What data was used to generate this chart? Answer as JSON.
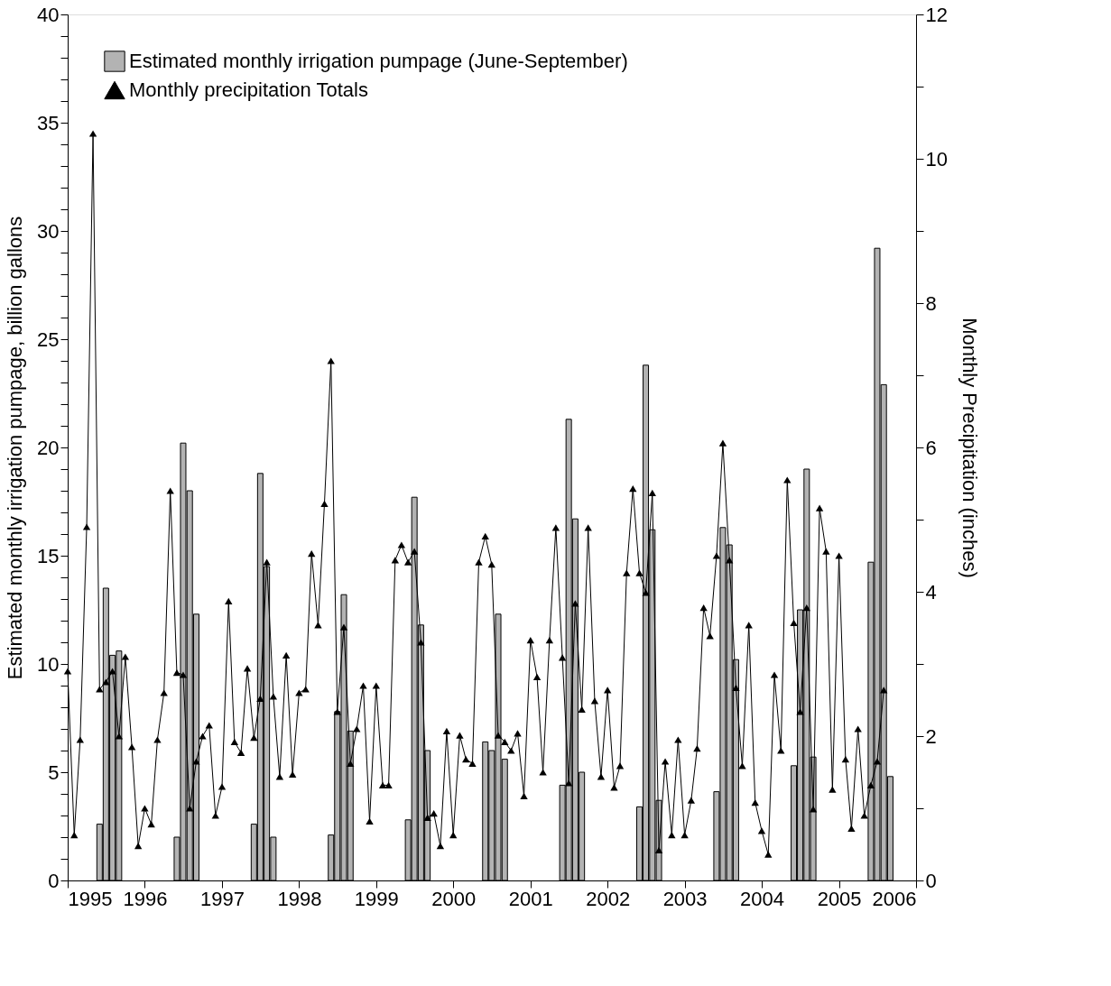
{
  "chart_data": {
    "type": "bar",
    "ylabel": "Estimated monthly irrigation pumpage, billion gallons",
    "y2label": "Monthly Precipitation (inches)",
    "legend": "top left",
    "grid": false,
    "xlim": [
      "1995",
      "2006"
    ],
    "xticks": [
      "1995",
      "1996",
      "1997",
      "1998",
      "1999",
      "2000",
      "2001",
      "2002",
      "2003",
      "2004",
      "2005",
      "2006"
    ],
    "ylim": [
      0,
      40
    ],
    "yticks": [
      0,
      {
        "value": 1,
        "label": null
      },
      {
        "value": 2,
        "label": null
      },
      {
        "value": 3,
        "label": null
      },
      {
        "value": 4,
        "label": null
      },
      5,
      {
        "value": 6,
        "label": null
      },
      {
        "value": 7,
        "label": null
      },
      {
        "value": 8,
        "label": null
      },
      {
        "value": 9,
        "label": null
      },
      10,
      {
        "value": 11,
        "label": null
      },
      {
        "value": 12,
        "label": null
      },
      {
        "value": 13,
        "label": null
      },
      {
        "value": 14,
        "label": null
      },
      15,
      {
        "value": 16,
        "label": null
      },
      {
        "value": 17,
        "label": null
      },
      {
        "value": 18,
        "label": null
      },
      {
        "value": 19,
        "label": null
      },
      20,
      {
        "value": 21,
        "label": null
      },
      {
        "value": 22,
        "label": null
      },
      {
        "value": 23,
        "label": null
      },
      {
        "value": 24,
        "label": null
      },
      25,
      {
        "value": 26,
        "label": null
      },
      {
        "value": 27,
        "label": null
      },
      {
        "value": 28,
        "label": null
      },
      {
        "value": 29,
        "label": null
      },
      30,
      {
        "value": 31,
        "label": null
      },
      {
        "value": 32,
        "label": null
      },
      {
        "value": 33,
        "label": null
      },
      {
        "value": 34,
        "label": null
      },
      35,
      {
        "value": 36,
        "label": null
      },
      {
        "value": 37,
        "label": null
      },
      {
        "value": 38,
        "label": null
      },
      {
        "value": 39,
        "label": null
      },
      40
    ],
    "y2lim": [
      0,
      12
    ],
    "y2ticks": [
      0,
      {
        "value": 1,
        "label": null
      },
      2,
      {
        "value": 3,
        "label": null
      },
      4,
      {
        "value": 5,
        "label": null
      },
      6,
      {
        "value": 7,
        "label": null
      },
      8,
      {
        "value": 9,
        "label": null
      },
      10,
      {
        "value": 11,
        "label": null
      },
      12
    ],
    "series": [
      {
        "name": "Estimated monthly irrigation pumpage (June-September)",
        "color": "#b3b3b3",
        "x": [
          "1995-06",
          "1995-07",
          "1995-08",
          "1995-09",
          "1996-06",
          "1996-07",
          "1996-08",
          "1996-09",
          "1997-06",
          "1997-07",
          "1997-08",
          "1997-09",
          "1998-06",
          "1998-07",
          "1998-08",
          "1998-09",
          "1999-06",
          "1999-07",
          "1999-08",
          "1999-09",
          "2000-06",
          "2000-07",
          "2000-08",
          "2000-09",
          "2001-06",
          "2001-07",
          "2001-08",
          "2001-09",
          "2002-06",
          "2002-07",
          "2002-08",
          "2002-09",
          "2003-06",
          "2003-07",
          "2003-08",
          "2003-09",
          "2004-06",
          "2004-07",
          "2004-08",
          "2004-09",
          "2005-06",
          "2005-07",
          "2005-08",
          "2005-09"
        ],
        "values": [
          2.6,
          13.5,
          10.4,
          10.6,
          2.0,
          20.2,
          18.0,
          12.3,
          2.6,
          18.8,
          14.5,
          2.0,
          2.1,
          7.8,
          13.2,
          6.9,
          2.8,
          17.7,
          11.8,
          6.0,
          6.4,
          6.0,
          12.3,
          5.6,
          4.4,
          21.3,
          16.7,
          5.0,
          3.4,
          23.8,
          16.2,
          3.7,
          4.1,
          16.3,
          15.5,
          10.2,
          5.3,
          12.5,
          19.0,
          5.7,
          14.7,
          29.2,
          22.9,
          4.8
        ]
      },
      {
        "name": "Monthly precipitation Totals",
        "type": "line",
        "axis": "y2",
        "color": "#000000",
        "marker": "triangle",
        "line_style": "solid",
        "x": [
          "1995-01",
          "1995-02",
          "1995-03",
          "1995-04",
          "1995-05",
          "1995-06",
          "1995-07",
          "1995-08",
          "1995-09",
          "1995-10",
          "1995-11",
          "1995-12",
          "1996-01",
          "1996-02",
          "1996-03",
          "1996-04",
          "1996-05",
          "1996-06",
          "1996-07",
          "1996-08",
          "1996-09",
          "1996-10",
          "1996-11",
          "1996-12",
          "1997-01",
          "1997-02",
          "1997-03",
          "1997-04",
          "1997-05",
          "1997-06",
          "1997-07",
          "1997-08",
          "1997-09",
          "1997-10",
          "1997-11",
          "1997-12",
          "1998-01",
          "1998-02",
          "1998-03",
          "1998-04",
          "1998-05",
          "1998-06",
          "1998-07",
          "1998-08",
          "1998-09",
          "1998-10",
          "1998-11",
          "1998-12",
          "1999-01",
          "1999-02",
          "1999-03",
          "1999-04",
          "1999-05",
          "1999-06",
          "1999-07",
          "1999-08",
          "1999-09",
          "1999-10",
          "1999-11",
          "1999-12",
          "2000-01",
          "2000-02",
          "2000-03",
          "2000-04",
          "2000-05",
          "2000-06",
          "2000-07",
          "2000-08",
          "2000-09",
          "2000-10",
          "2000-11",
          "2000-12",
          "2001-01",
          "2001-02",
          "2001-03",
          "2001-04",
          "2001-05",
          "2001-06",
          "2001-07",
          "2001-08",
          "2001-09",
          "2001-10",
          "2001-11",
          "2001-12",
          "2002-01",
          "2002-02",
          "2002-03",
          "2002-04",
          "2002-05",
          "2002-06",
          "2002-07",
          "2002-08",
          "2002-09",
          "2002-10",
          "2002-11",
          "2002-12",
          "2003-01",
          "2003-02",
          "2003-03",
          "2003-04",
          "2003-05",
          "2003-06",
          "2003-07",
          "2003-08",
          "2003-09",
          "2003-10",
          "2003-11",
          "2003-12",
          "2004-01",
          "2004-02",
          "2004-03",
          "2004-04",
          "2004-05",
          "2004-06",
          "2004-07",
          "2004-08",
          "2004-09",
          "2004-10",
          "2004-11",
          "2004-12",
          "2005-01",
          "2005-02",
          "2005-03",
          "2005-04",
          "2005-05",
          "2005-06",
          "2005-07",
          "2005-08"
        ],
        "values": [
          2.9,
          0.63,
          1.95,
          4.9,
          10.35,
          2.65,
          2.75,
          2.9,
          2.0,
          3.1,
          1.85,
          0.48,
          1.0,
          0.78,
          1.95,
          2.6,
          5.4,
          2.88,
          2.85,
          1.0,
          1.65,
          2.0,
          2.15,
          0.9,
          1.3,
          3.87,
          1.92,
          1.77,
          2.94,
          1.98,
          2.52,
          4.41,
          2.55,
          1.44,
          3.12,
          1.47,
          2.6,
          2.65,
          4.53,
          3.54,
          5.22,
          7.2,
          2.34,
          3.51,
          1.62,
          2.1,
          2.7,
          0.82,
          2.7,
          1.32,
          1.32,
          4.44,
          4.65,
          4.41,
          4.56,
          3.3,
          0.87,
          0.93,
          0.48,
          2.07,
          0.63,
          2.01,
          1.68,
          1.62,
          4.41,
          4.77,
          4.38,
          2.01,
          1.92,
          1.8,
          2.04,
          1.17,
          3.33,
          2.82,
          1.5,
          3.33,
          4.89,
          3.09,
          1.35,
          3.84,
          2.37,
          4.89,
          2.49,
          1.44,
          2.64,
          1.29,
          1.59,
          4.26,
          5.43,
          4.26,
          3.99,
          5.37,
          0.42,
          1.65,
          0.63,
          1.95,
          0.63,
          1.11,
          1.83,
          3.78,
          3.39,
          4.5,
          6.06,
          4.44,
          2.67,
          1.59,
          3.54,
          1.08,
          0.69,
          0.36,
          2.85,
          1.8,
          5.55,
          3.57,
          2.34,
          3.78,
          0.99,
          5.16,
          4.56,
          1.26,
          4.5,
          1.68,
          0.72,
          2.1,
          0.9,
          1.32,
          1.65,
          2.64
        ]
      }
    ]
  }
}
